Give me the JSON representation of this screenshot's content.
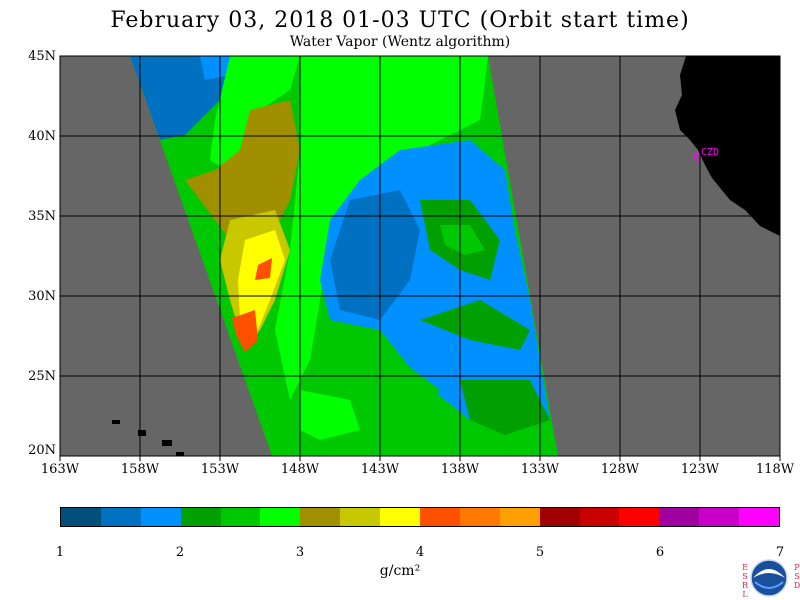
{
  "title": "February 03, 2018  01-03 UTC  (Orbit start time)",
  "subtitle": "Water Vapor (Wentz algorithm)",
  "lat_labels": [
    "45N",
    "40N",
    "35N",
    "30N",
    "25N",
    "20N"
  ],
  "lon_labels": [
    "163W",
    "158W",
    "153W",
    "148W",
    "143W",
    "138W",
    "133W",
    "128W",
    "123W",
    "118W"
  ],
  "map_label": "CZD",
  "colorbar": {
    "colors": [
      "#00507a",
      "#0070c0",
      "#0090ff",
      "#00a000",
      "#00c800",
      "#00ff00",
      "#a09000",
      "#c8c800",
      "#ffff00",
      "#ff5000",
      "#ff7800",
      "#ffa000",
      "#a00000",
      "#c80000",
      "#ff0000",
      "#a000a0",
      "#c800c8",
      "#ff00ff"
    ],
    "labels": [
      "1",
      "2",
      "3",
      "4",
      "5",
      "6",
      "7"
    ],
    "unit": "g/cm²"
  },
  "colors": {
    "land": "#000000",
    "no_data": "#666666",
    "grid": "#000000",
    "label_marker": "#ff00ff"
  },
  "logos": {
    "left_vertical": "ESRL",
    "right_vertical": "PSD",
    "center": "noaa-logo"
  }
}
